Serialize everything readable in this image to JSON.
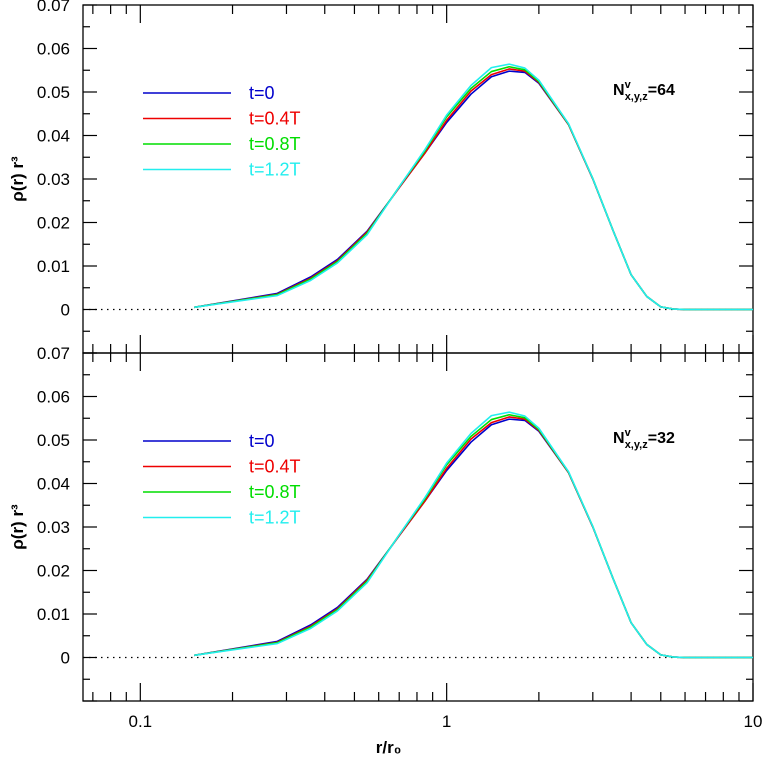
{
  "chart_data": [
    {
      "type": "line",
      "xscale": "log",
      "xlim": [
        0.065,
        10
      ],
      "ylim": [
        -0.01,
        0.07
      ],
      "xticks": [
        0.1,
        1,
        10
      ],
      "xtick_labels": [
        "0.1",
        "1",
        "10"
      ],
      "yticks": [
        0,
        0.01,
        0.02,
        0.03,
        0.04,
        0.05,
        0.06,
        0.07
      ],
      "ytick_labels": [
        "0",
        "0.01",
        "0.02",
        "0.03",
        "0.04",
        "0.05",
        "0.06",
        "0.07"
      ],
      "ylabel": "ρ(r) r³",
      "annotation": {
        "main": "N",
        "sup": "v",
        "sub": "x,y,z",
        "rest": "=64"
      },
      "reference_line": {
        "y": 0,
        "style": "dotted"
      },
      "legend_position": "top-left",
      "series": [
        {
          "name": "t=0",
          "color": "#0000cc",
          "x": [
            0.15,
            0.28,
            0.36,
            0.44,
            0.55,
            0.7,
            0.85,
            1.0,
            1.2,
            1.4,
            1.6,
            1.8,
            2.0,
            2.5,
            3.0,
            3.5,
            4.0,
            4.5,
            5.0,
            5.5,
            6.0,
            8.0,
            10.0
          ],
          "y": [
            0.0005,
            0.0037,
            0.0075,
            0.0115,
            0.018,
            0.028,
            0.036,
            0.043,
            0.0495,
            0.0535,
            0.0548,
            0.0545,
            0.052,
            0.0425,
            0.03,
            0.018,
            0.008,
            0.003,
            0.0006,
            0.0001,
            0.0,
            0.0,
            0.0
          ]
        },
        {
          "name": "t=0.4T",
          "color": "#ee0000",
          "x": [
            0.15,
            0.28,
            0.36,
            0.44,
            0.55,
            0.7,
            0.85,
            1.0,
            1.2,
            1.4,
            1.6,
            1.8,
            2.0,
            2.5,
            3.0,
            3.5,
            4.0,
            4.5,
            5.0,
            5.5,
            6.0,
            8.0,
            10.0
          ],
          "y": [
            0.0005,
            0.0035,
            0.0072,
            0.0112,
            0.0178,
            0.028,
            0.036,
            0.0435,
            0.0502,
            0.054,
            0.0553,
            0.0548,
            0.0522,
            0.0425,
            0.03,
            0.018,
            0.008,
            0.003,
            0.0006,
            0.0001,
            0.0,
            0.0,
            0.0
          ]
        },
        {
          "name": "t=0.8T",
          "color": "#00dd00",
          "x": [
            0.15,
            0.28,
            0.36,
            0.44,
            0.55,
            0.7,
            0.85,
            1.0,
            1.2,
            1.4,
            1.6,
            1.8,
            2.0,
            2.5,
            3.0,
            3.5,
            4.0,
            4.5,
            5.0,
            5.5,
            6.0,
            8.0,
            10.0
          ],
          "y": [
            0.0005,
            0.0034,
            0.007,
            0.011,
            0.0175,
            0.0282,
            0.0365,
            0.0443,
            0.0508,
            0.0547,
            0.0558,
            0.0551,
            0.0524,
            0.0426,
            0.0301,
            0.018,
            0.008,
            0.003,
            0.0006,
            0.0001,
            0.0,
            0.0,
            0.0
          ]
        },
        {
          "name": "t=1.2T",
          "color": "#22eeee",
          "x": [
            0.15,
            0.28,
            0.36,
            0.44,
            0.55,
            0.7,
            0.85,
            1.0,
            1.2,
            1.4,
            1.6,
            1.8,
            2.0,
            2.5,
            3.0,
            3.5,
            4.0,
            4.5,
            5.0,
            5.5,
            6.0,
            8.0,
            10.0
          ],
          "y": [
            0.0005,
            0.0032,
            0.0067,
            0.0107,
            0.0172,
            0.0282,
            0.0368,
            0.0447,
            0.0515,
            0.0556,
            0.0564,
            0.0555,
            0.0527,
            0.0427,
            0.0301,
            0.018,
            0.008,
            0.003,
            0.0006,
            0.0001,
            0.0,
            0.0,
            0.0
          ]
        }
      ]
    },
    {
      "type": "line",
      "xscale": "log",
      "xlim": [
        0.065,
        10
      ],
      "ylim": [
        -0.01,
        0.07
      ],
      "xticks": [
        0.1,
        1,
        10
      ],
      "xtick_labels": [
        "0.1",
        "1",
        "10"
      ],
      "yticks": [
        0,
        0.01,
        0.02,
        0.03,
        0.04,
        0.05,
        0.06,
        0.07
      ],
      "ytick_labels": [
        "0",
        "0.01",
        "0.02",
        "0.03",
        "0.04",
        "0.05",
        "0.06",
        "0.07"
      ],
      "ylabel": "ρ(r) r³",
      "xlabel": "r/r₀",
      "annotation": {
        "main": "N",
        "sup": "v",
        "sub": "x,y,z",
        "rest": "=32"
      },
      "reference_line": {
        "y": 0,
        "style": "dotted"
      },
      "legend_position": "top-left",
      "series": [
        {
          "name": "t=0",
          "color": "#0000cc",
          "x": [
            0.15,
            0.28,
            0.36,
            0.44,
            0.55,
            0.7,
            0.85,
            1.0,
            1.2,
            1.4,
            1.6,
            1.8,
            2.0,
            2.5,
            3.0,
            3.5,
            4.0,
            4.5,
            5.0,
            5.5,
            6.0,
            8.0,
            10.0
          ],
          "y": [
            0.0005,
            0.0037,
            0.0075,
            0.0115,
            0.018,
            0.028,
            0.036,
            0.043,
            0.0495,
            0.0535,
            0.0548,
            0.0545,
            0.052,
            0.0425,
            0.03,
            0.018,
            0.008,
            0.003,
            0.0006,
            0.0001,
            0.0,
            0.0,
            0.0
          ]
        },
        {
          "name": "t=0.4T",
          "color": "#ee0000",
          "x": [
            0.15,
            0.28,
            0.36,
            0.44,
            0.55,
            0.7,
            0.85,
            1.0,
            1.2,
            1.4,
            1.6,
            1.8,
            2.0,
            2.5,
            3.0,
            3.5,
            4.0,
            4.5,
            5.0,
            5.5,
            6.0,
            8.0,
            10.0
          ],
          "y": [
            0.0005,
            0.0035,
            0.0072,
            0.0112,
            0.0178,
            0.028,
            0.036,
            0.0435,
            0.0502,
            0.054,
            0.0553,
            0.0548,
            0.0522,
            0.0425,
            0.03,
            0.018,
            0.008,
            0.003,
            0.0006,
            0.0001,
            0.0,
            0.0,
            0.0
          ]
        },
        {
          "name": "t=0.8T",
          "color": "#00dd00",
          "x": [
            0.15,
            0.28,
            0.36,
            0.44,
            0.55,
            0.7,
            0.85,
            1.0,
            1.2,
            1.4,
            1.6,
            1.8,
            2.0,
            2.5,
            3.0,
            3.5,
            4.0,
            4.5,
            5.0,
            5.5,
            6.0,
            8.0,
            10.0
          ],
          "y": [
            0.0005,
            0.0034,
            0.007,
            0.011,
            0.0175,
            0.0282,
            0.0365,
            0.0443,
            0.0508,
            0.0547,
            0.0558,
            0.0551,
            0.0524,
            0.0426,
            0.0301,
            0.018,
            0.008,
            0.003,
            0.0006,
            0.0001,
            0.0,
            0.0,
            0.0
          ]
        },
        {
          "name": "t=1.2T",
          "color": "#22eeee",
          "x": [
            0.15,
            0.28,
            0.36,
            0.44,
            0.55,
            0.7,
            0.85,
            1.0,
            1.2,
            1.4,
            1.6,
            1.8,
            2.0,
            2.5,
            3.0,
            3.5,
            4.0,
            4.5,
            5.0,
            5.5,
            6.0,
            8.0,
            10.0
          ],
          "y": [
            0.0005,
            0.0032,
            0.0067,
            0.0107,
            0.0172,
            0.0282,
            0.0368,
            0.0447,
            0.0515,
            0.0556,
            0.0564,
            0.0555,
            0.0527,
            0.0427,
            0.0301,
            0.018,
            0.008,
            0.003,
            0.0006,
            0.0001,
            0.0,
            0.0,
            0.0
          ]
        }
      ]
    }
  ]
}
